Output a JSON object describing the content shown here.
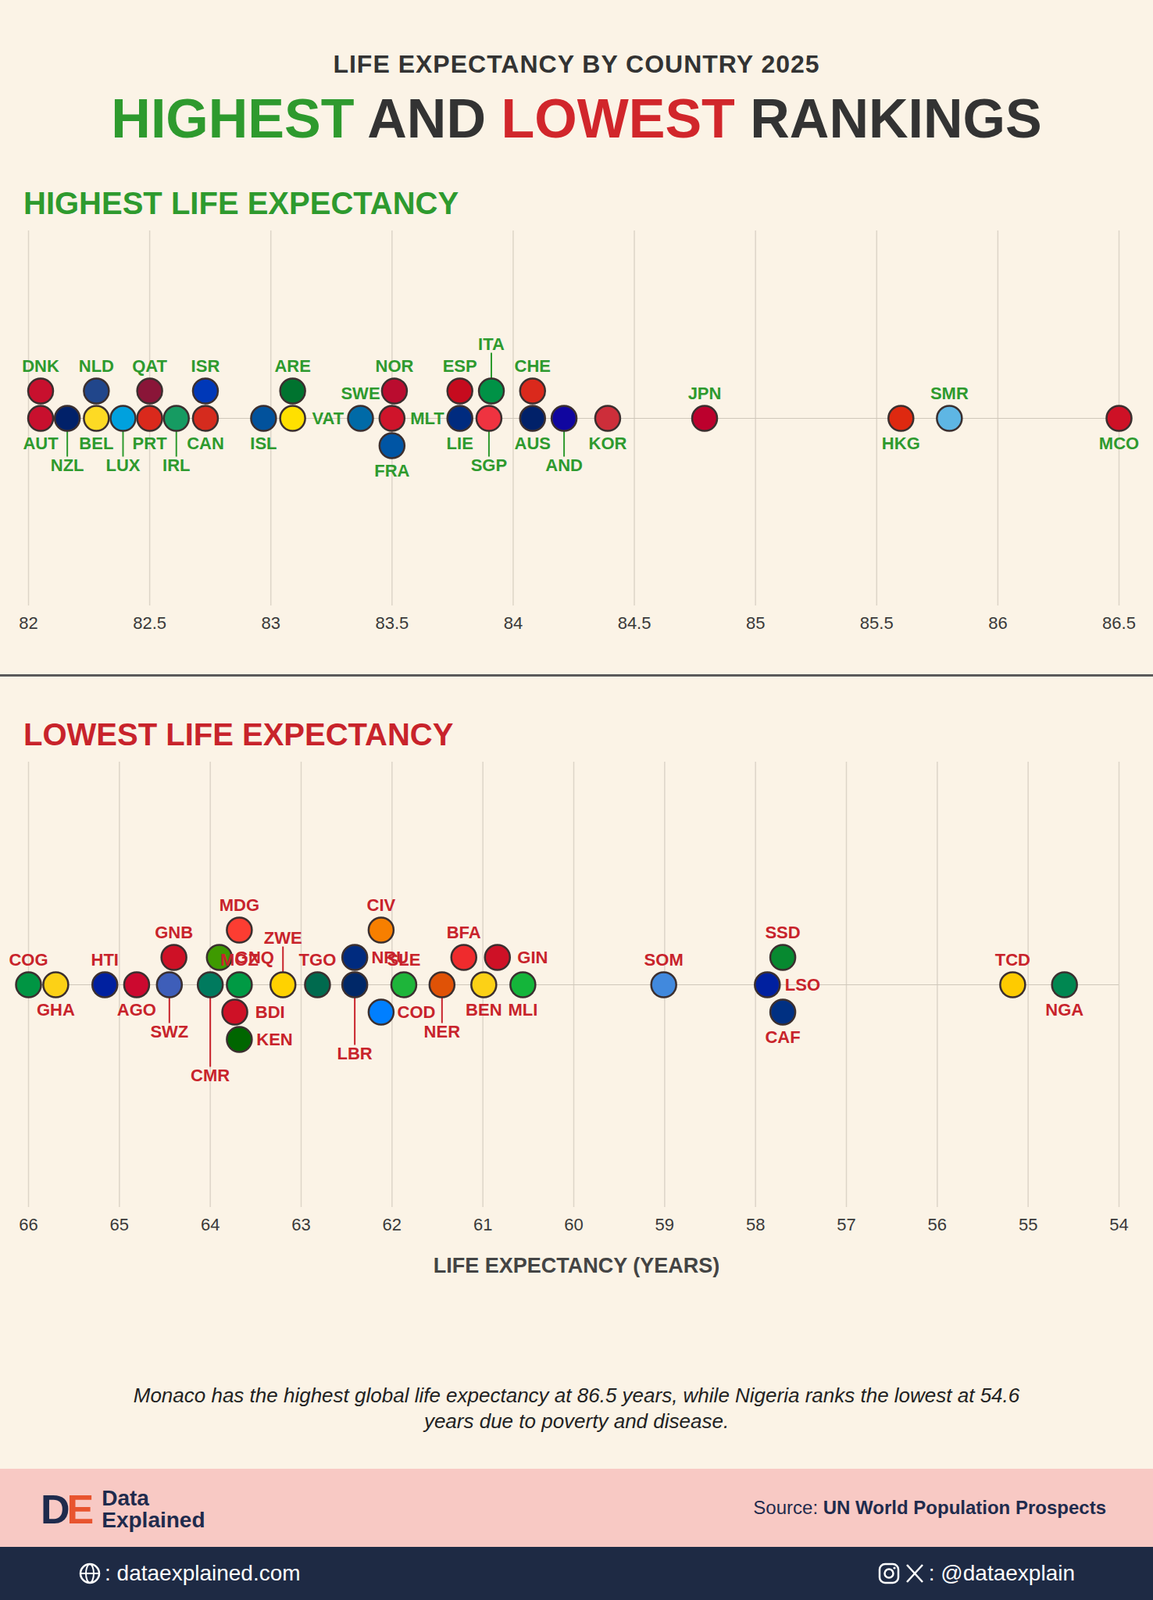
{
  "header": {
    "kicker": "LIFE EXPECTANCY BY COUNTRY 2025",
    "title": [
      {
        "text": "HIGHEST",
        "color": "#2e9a2e"
      },
      {
        "text": "AND",
        "color": "#333333"
      },
      {
        "text": "LOWEST",
        "color": "#d1262b"
      },
      {
        "text": "RANKINGS",
        "color": "#333333"
      }
    ]
  },
  "chart_data": [
    {
      "type": "scatter",
      "title": "HIGHEST LIFE EXPECTANCY",
      "color": "#2e9a2e",
      "categories": [
        "AUT",
        "DNK",
        "NZL",
        "BEL",
        "NLD",
        "LUX",
        "PRT",
        "QAT",
        "IRL",
        "CAN",
        "ISR",
        "ISL",
        "VAT",
        "ARE",
        "SWE",
        "MLT",
        "NOR",
        "FRA",
        "LIE",
        "ESP",
        "SGP",
        "ITA",
        "AUS",
        "CHE",
        "AND",
        "KOR",
        "JPN",
        "HKG",
        "SMR",
        "MCO"
      ],
      "values": [
        82.05,
        82.05,
        82.16,
        82.28,
        82.28,
        82.39,
        82.5,
        82.5,
        82.61,
        82.73,
        82.73,
        82.97,
        83.09,
        83.09,
        83.37,
        83.5,
        83.51,
        83.5,
        83.78,
        83.78,
        83.9,
        83.91,
        84.08,
        84.08,
        84.21,
        84.39,
        84.79,
        85.6,
        85.8,
        86.5
      ],
      "colors": [
        "#c8102e",
        "#c8102e",
        "#012169",
        "#fdda24",
        "#21468b",
        "#00a1de",
        "#da291c",
        "#8a1538",
        "#169b62",
        "#d52b1e",
        "#0038b8",
        "#02529c",
        "#ffe000",
        "#00732f",
        "#006aa7",
        "#cf142b",
        "#ba0c2f",
        "#0055a4",
        "#002b7f",
        "#c60b1e",
        "#ef3340",
        "#009246",
        "#012169",
        "#da291c",
        "#10069f",
        "#cd2e3a",
        "#bc002d",
        "#de2910",
        "#5eb6e4",
        "#ce1126"
      ],
      "xlim": [
        82,
        86.5
      ],
      "xticks": [
        82,
        82.5,
        83,
        83.5,
        84,
        84.5,
        85,
        85.5,
        86,
        86.5
      ],
      "grid": true,
      "tick_labels": "x"
    },
    {
      "type": "scatter",
      "title": "LOWEST LIFE EXPECTANCY",
      "color": "#c8232b",
      "x_label": "LIFE EXPECTANCY (YEARS)",
      "categories": [
        "COG",
        "GHA",
        "HTI",
        "AGO",
        "SWZ",
        "GNB",
        "CMR",
        "GNQ",
        "BDI",
        "MOZ",
        "MDG",
        "KEN",
        "ZWE",
        "TGO",
        "LBR",
        "NRU",
        "COD",
        "CIV",
        "SLE",
        "NER",
        "BFA",
        "BEN",
        "GIN",
        "MLI",
        "SOM",
        "LSO",
        "SSD",
        "CAF",
        "TCD",
        "NGA"
      ],
      "values": [
        66,
        65.7,
        65.16,
        64.81,
        64.45,
        64.4,
        64,
        63.9,
        63.73,
        63.68,
        63.68,
        63.68,
        63.2,
        62.82,
        62.41,
        62.41,
        62.12,
        62.12,
        61.87,
        61.45,
        61.21,
        60.99,
        60.84,
        60.56,
        59.01,
        57.87,
        57.7,
        57.7,
        55.17,
        54.6
      ],
      "colors": [
        "#009543",
        "#fcd116",
        "#00209f",
        "#cc092f",
        "#3e5eb9",
        "#ce1126",
        "#007a5e",
        "#3e9a00",
        "#ce1126",
        "#009a44",
        "#fc3d32",
        "#006600",
        "#ffd200",
        "#006a4e",
        "#002868",
        "#002b7f",
        "#007fff",
        "#f77f00",
        "#1eb53a",
        "#e05206",
        "#ef2b2d",
        "#fcd116",
        "#ce1126",
        "#14b53a",
        "#4189dd",
        "#00209f",
        "#078930",
        "#003082",
        "#fecb00",
        "#008751"
      ],
      "xlim": [
        66,
        54
      ],
      "xticks": [
        66,
        65,
        64,
        63,
        62,
        61,
        60,
        59,
        58,
        57,
        56,
        55,
        54
      ],
      "grid": true,
      "tick_labels": "x"
    }
  ],
  "caption": "Monaco has the highest global life expectancy at 86.5 years, while Nigeria ranks the lowest at 54.6 years due to poverty and disease.",
  "footer": {
    "logo": "DE",
    "brand": [
      "Data",
      "Explained"
    ],
    "source_label": "Source:",
    "source": "UN World Population Prospects",
    "website": ": dataexplained.com",
    "social": ": @dataexplain"
  }
}
